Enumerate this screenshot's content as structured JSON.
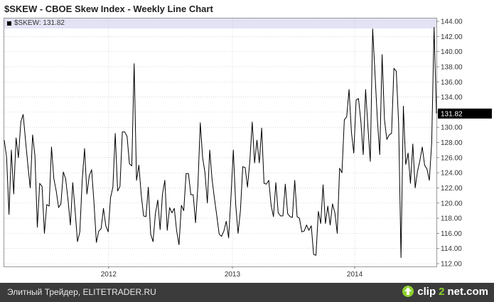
{
  "header": {
    "title": "$SKEW - CBOE Skew Index - Weekly Line Chart"
  },
  "legend": {
    "label": "$SKEW: 131.82"
  },
  "last_value_label": "131.82",
  "footer": {
    "text": "Элитный Трейдер, ELITETRADER.RU",
    "brand_pre": "clip",
    "brand_two": "2",
    "brand_post": "net.com"
  },
  "colors": {
    "line": "#000000",
    "legend_band": "#e3e3f5",
    "grid": "#bfbfbf",
    "footer_bg": "#3b3b3b",
    "brand_accent": "#8fd12f"
  },
  "icons": {
    "brand": "clip2net-up-arrow-icon"
  },
  "chart_data": {
    "type": "line",
    "title": "$SKEW - CBOE Skew Index - Weekly Line Chart",
    "xlabel": "",
    "ylabel": "",
    "ylim": [
      112,
      144
    ],
    "yticks": [
      112,
      114,
      116,
      118,
      120,
      122,
      124,
      126,
      128,
      130,
      132,
      134,
      136,
      138,
      140,
      142,
      144
    ],
    "ytick_labels": [
      "112.00",
      "114.00",
      "116.00",
      "118.00",
      "120.00",
      "122.00",
      "124.00",
      "126.00",
      "128.00",
      "130.00",
      "132.00",
      "134.00",
      "136.00",
      "138.00",
      "140.00",
      "142.00",
      "144.00"
    ],
    "xticks": [
      {
        "index": 44.2,
        "label": "2012"
      },
      {
        "index": 96.6,
        "label": "2013"
      },
      {
        "index": 148.4,
        "label": "2014"
      }
    ],
    "grid": true,
    "legend": "top-left",
    "series": [
      {
        "name": "$SKEW",
        "values": [
          128.3,
          126.0,
          118.5,
          127.0,
          121.2,
          128.6,
          126.0,
          130.7,
          131.7,
          128.3,
          125.0,
          122.0,
          129.0,
          126.2,
          116.8,
          122.6,
          122.2,
          116.0,
          119.8,
          119.6,
          127.4,
          123.2,
          121.6,
          119.4,
          119.9,
          124.1,
          123.2,
          120.4,
          117.1,
          122.7,
          119.0,
          114.9,
          116.2,
          123.0,
          127.2,
          121.2,
          123.6,
          124.4,
          120.0,
          114.8,
          116.3,
          116.6,
          119.3,
          117.0,
          116.2,
          120.7,
          122.1,
          129.2,
          121.6,
          122.2,
          129.4,
          129.4,
          128.8,
          125.2,
          124.9,
          138.4,
          123.0,
          125.0,
          121.1,
          118.3,
          118.2,
          122.1,
          115.9,
          114.9,
          118.6,
          120.4,
          116.5,
          121.2,
          123.0,
          116.4,
          119.4,
          118.7,
          119.3,
          116.3,
          114.5,
          119.7,
          119.0,
          123.9,
          123.9,
          121.1,
          121.1,
          117.4,
          122.3,
          130.6,
          126.0,
          124.0,
          120.0,
          127.0,
          123.1,
          120.6,
          118.3,
          115.9,
          115.6,
          116.3,
          117.6,
          115.4,
          120.8,
          127.0,
          119.8,
          116.0,
          119.0,
          124.8,
          124.7,
          122.1,
          125.6,
          130.7,
          125.3,
          128.3,
          125.3,
          129.9,
          122.6,
          122.5,
          123.0,
          119.7,
          118.2,
          122.7,
          118.7,
          118.3,
          118.3,
          122.5,
          118.6,
          118.2,
          118.1,
          123.0,
          118.2,
          118.0,
          116.2,
          116.3,
          117.1,
          116.4,
          117.0,
          113.2,
          113.1,
          118.9,
          117.3,
          122.4,
          117.3,
          119.6,
          117.1,
          119.9,
          118.7,
          116.0,
          124.6,
          124.0,
          131.0,
          131.4,
          135.0,
          129.4,
          126.6,
          133.6,
          133.8,
          130.8,
          126.4,
          135.0,
          130.0,
          125.5,
          143.0,
          137.0,
          131.0,
          126.4,
          139.6,
          131.0,
          128.4,
          129.0,
          129.2,
          137.8,
          137.4,
          130.5,
          112.8,
          132.8,
          125.1,
          126.6,
          122.6,
          127.8,
          122.0,
          124.2,
          125.6,
          127.4,
          125.0,
          124.5,
          123.0,
          128.0,
          143.2,
          131.82
        ]
      }
    ]
  }
}
